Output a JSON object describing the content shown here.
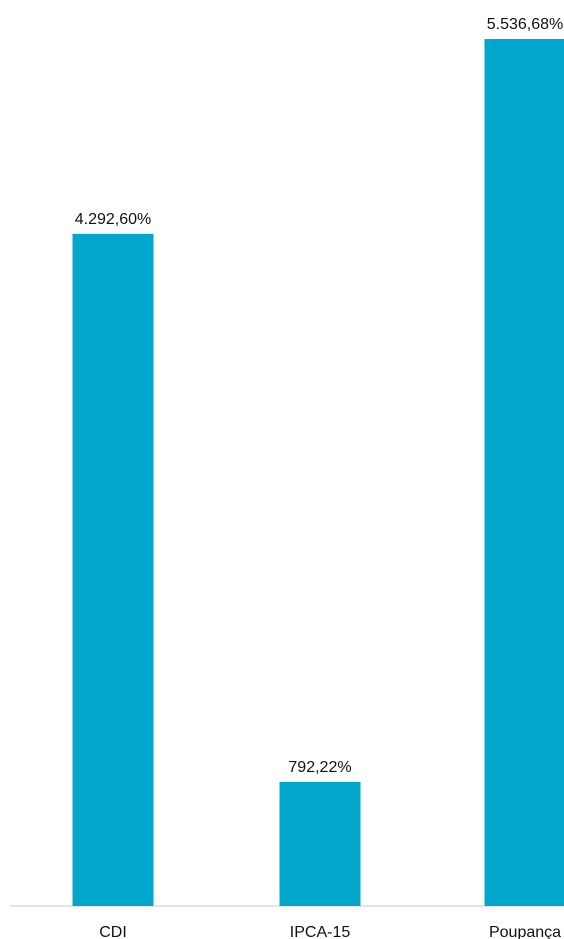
{
  "chart_data": {
    "type": "bar",
    "categories": [
      "CDI",
      "IPCA-15",
      "Poupança"
    ],
    "values": [
      4292.6,
      792.22,
      5536.68
    ],
    "value_labels": [
      "4.292,60%",
      "792,22%",
      "5.536,68%"
    ],
    "title": "",
    "xlabel": "",
    "ylabel": "",
    "ylim": [
      0,
      5536.68
    ],
    "grid": false,
    "legend": "none",
    "bar_color": "#00a6cc",
    "axis_color": "#c8c8c8"
  }
}
